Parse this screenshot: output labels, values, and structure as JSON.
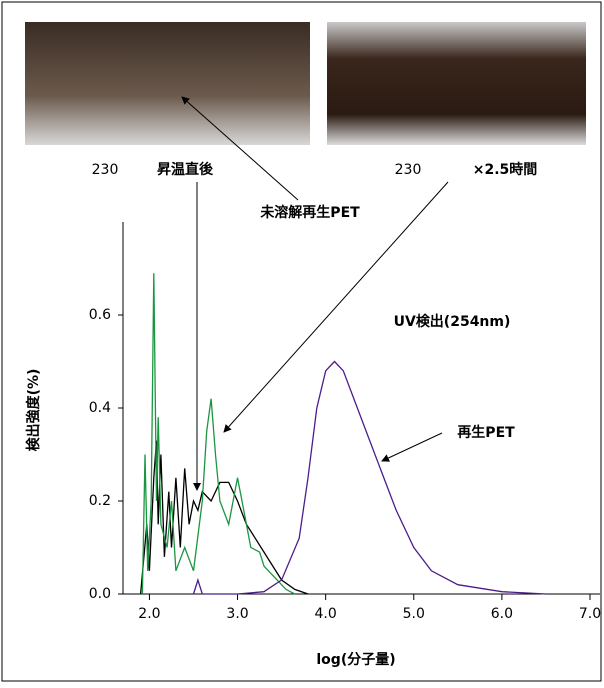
{
  "chart_data": {
    "type": "line",
    "x_label": "log(分子量)",
    "y_label": "検出強度(%)",
    "xlim": [
      1.7,
      7.0
    ],
    "xticks": [
      {
        "value": 2,
        "label": "2.0"
      },
      {
        "value": 3,
        "label": "3.0"
      },
      {
        "value": 4,
        "label": "4.0"
      },
      {
        "value": 5,
        "label": "5.0"
      },
      {
        "value": 6,
        "label": "6.0"
      },
      {
        "value": 7,
        "label": "7.0"
      }
    ],
    "ylim": [
      0,
      0.8
    ],
    "yticks": [
      {
        "value": 0,
        "label": "0.0"
      },
      0.2,
      0.4,
      0.6
    ],
    "photo_labels": [
      [
        "230",
        "昇温直後"
      ],
      [
        "230",
        "×2.5時間"
      ]
    ],
    "annotations": [
      "未溶解再生PET",
      "UV検出(254nm)",
      "再生PET"
    ],
    "series": [
      {
        "color": "#000000",
        "x": [
          1.9,
          1.97,
          2.0,
          2.05,
          2.08,
          2.1,
          2.13,
          2.17,
          2.22,
          2.25,
          2.3,
          2.35,
          2.4,
          2.45,
          2.5,
          2.55,
          2.6,
          2.7,
          2.8,
          2.9,
          3.0,
          3.1,
          3.2,
          3.3,
          3.4,
          3.5,
          3.65,
          3.8
        ],
        "values": [
          0,
          0.15,
          0.05,
          0.25,
          0.33,
          0.15,
          0.3,
          0.08,
          0.22,
          0.1,
          0.25,
          0.1,
          0.27,
          0.15,
          0.2,
          0.18,
          0.22,
          0.2,
          0.24,
          0.24,
          0.2,
          0.15,
          0.12,
          0.09,
          0.06,
          0.03,
          0.01,
          0
        ]
      },
      {
        "color": "#1a9641",
        "x": [
          1.92,
          1.95,
          1.98,
          2.02,
          2.05,
          2.08,
          2.1,
          2.13,
          2.2,
          2.25,
          2.3,
          2.4,
          2.5,
          2.6,
          2.65,
          2.7,
          2.75,
          2.8,
          2.9,
          3.0,
          3.05,
          3.15,
          3.25,
          3.3,
          3.4,
          3.55,
          3.65
        ],
        "values": [
          0,
          0.3,
          0.05,
          0.2,
          0.69,
          0.2,
          0.38,
          0.15,
          0.1,
          0.2,
          0.05,
          0.1,
          0.05,
          0.2,
          0.35,
          0.42,
          0.3,
          0.2,
          0.15,
          0.25,
          0.2,
          0.1,
          0.09,
          0.06,
          0.04,
          0.01,
          0
        ]
      },
      {
        "color": "#4b1d8c",
        "x": [
          2.5,
          2.55,
          2.6,
          3.0,
          3.3,
          3.5,
          3.7,
          3.8,
          3.9,
          4.0,
          4.1,
          4.2,
          4.3,
          4.5,
          4.6,
          4.8,
          5.0,
          5.2,
          5.5,
          6.0,
          6.5
        ],
        "values": [
          0,
          0.03,
          0,
          0,
          0.005,
          0.03,
          0.12,
          0.25,
          0.4,
          0.48,
          0.5,
          0.48,
          0.43,
          0.33,
          0.28,
          0.18,
          0.1,
          0.05,
          0.02,
          0.005,
          0
        ]
      }
    ]
  }
}
